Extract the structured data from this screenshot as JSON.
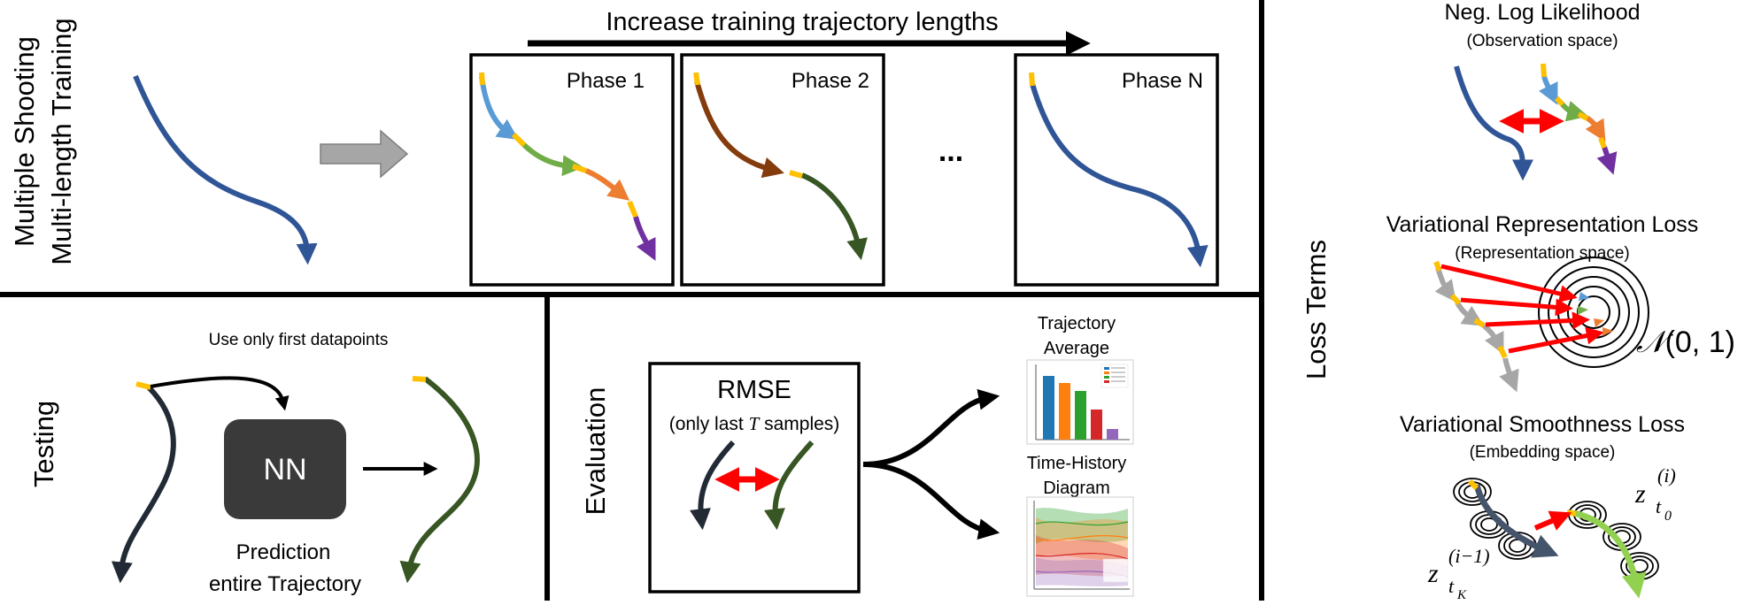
{
  "training": {
    "side_label_1": "Multiple Shooting",
    "side_label_2": "Multi-length Training",
    "header": "Increase training trajectory lengths",
    "phases": [
      "Phase 1",
      "Phase 2",
      "Phase N"
    ],
    "ellipsis": "..."
  },
  "testing": {
    "side_label": "Testing",
    "note": "Use only first datapoints",
    "nn_label": "NN",
    "prediction_1": "Prediction",
    "prediction_2": "entire Trajectory"
  },
  "evaluation": {
    "side_label": "Evaluation",
    "rmse_title": "RMSE",
    "rmse_sub_pre": "(only last ",
    "rmse_sub_var": "T",
    "rmse_sub_post": " samples)",
    "traj_avg_1": "Trajectory",
    "traj_avg_2": "Average",
    "time_hist_1": "Time-History",
    "time_hist_2": "Diagram"
  },
  "loss": {
    "side_label": "Loss Terms",
    "nll_title": "Neg. Log Likelihood",
    "nll_sub": "(Observation space)",
    "vrl_title": "Variational Representation Loss",
    "vrl_sub": "(Representation space)",
    "normal_symbol": "𝒩",
    "normal_args": "(0, 1)",
    "vsl_title": "Variational Smoothness Loss",
    "vsl_sub": "(Embedding space)",
    "z": "z",
    "z_i_sup": "(i)",
    "z_i_sub": "t",
    "z_i_subsub": "0",
    "z_prev_sup": "(i−1)",
    "z_prev_sub": "t",
    "z_prev_subsub": "K"
  },
  "colors": {
    "blue": "#2F5597",
    "light_blue": "#5B9BD5",
    "green": "#70AD47",
    "orange": "#ED7D31",
    "purple": "#7030A0",
    "brown": "#843C0C",
    "dark_green": "#375623",
    "navy": "#222A35",
    "yellow": "#FFC000",
    "red": "#FF0000",
    "gray": "#A6A6A6",
    "nn_box": "#3A3A3A"
  }
}
